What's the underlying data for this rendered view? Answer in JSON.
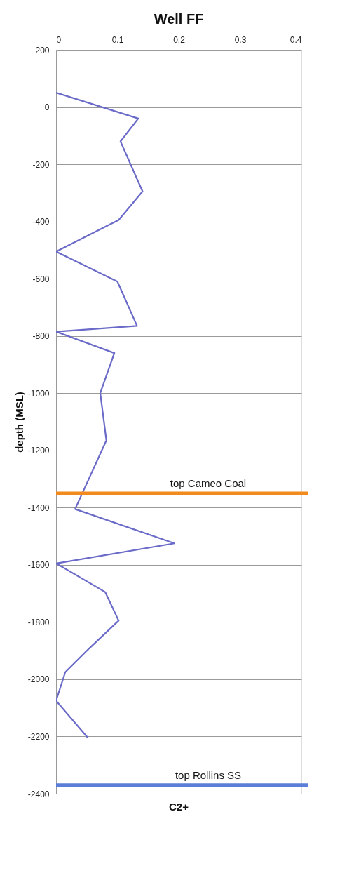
{
  "chart_data": {
    "type": "line",
    "title": "Well FF",
    "xlabel": "C2+",
    "ylabel": "depth (MSL)",
    "x": [
      0,
      0.134,
      0.105,
      0.141,
      0.102,
      0,
      0.1,
      0.132,
      0,
      0.095,
      0.072,
      0.082,
      0.031,
      0.193,
      0,
      0.08,
      0.102,
      0.055,
      0.015,
      0,
      0.052
    ],
    "series": [
      {
        "color": "#6a6ac8",
        "values": [
          50,
          -40,
          -120,
          -295,
          -395,
          -505,
          -610,
          -765,
          -785,
          -860,
          -1000,
          -1165,
          -1405,
          -1525,
          -1595,
          -1695,
          -1795,
          -1890,
          -1975,
          -2075,
          -2205
        ]
      }
    ],
    "xlim": [
      0,
      0.4
    ],
    "xticks": [
      0,
      0.1,
      0.2,
      0.3,
      0.4
    ],
    "ylim": [
      -2400,
      200
    ],
    "yticks": [
      200,
      0,
      -200,
      -400,
      -600,
      -800,
      -1000,
      -1200,
      -1400,
      -1600,
      -1800,
      -2000,
      -2200,
      -2400
    ],
    "grid": "y",
    "marker": "none",
    "line_style": "solid",
    "ref_lines": [
      {
        "axis": "y",
        "value": -1350,
        "label": "top Cameo Coal",
        "color": "#f28a1e"
      },
      {
        "axis": "y",
        "value": -2370,
        "label": "top Rollins SS",
        "color": "#5b7fd6"
      }
    ]
  }
}
